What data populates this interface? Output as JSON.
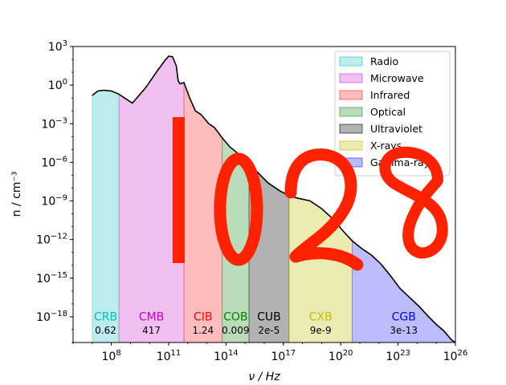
{
  "chart_data": {
    "type": "area",
    "xlabel": "ν / Hz",
    "ylabel": "n / cm⁻³",
    "xscale": "log",
    "yscale": "log",
    "xlim": [
      1000000.0,
      1e+26
    ],
    "ylim": [
      1e-20,
      1000.0
    ],
    "xticks": [
      {
        "value": 100000000.0,
        "base": "10",
        "exp": "8"
      },
      {
        "value": 100000000000.0,
        "base": "10",
        "exp": "11"
      },
      {
        "value": 100000000000000.0,
        "base": "10",
        "exp": "14"
      },
      {
        "value": 1e+17,
        "base": "10",
        "exp": "17"
      },
      {
        "value": 1e+20,
        "base": "10",
        "exp": "20"
      },
      {
        "value": 1e+23,
        "base": "10",
        "exp": "23"
      },
      {
        "value": 1e+26,
        "base": "10",
        "exp": "26"
      }
    ],
    "yticks": [
      {
        "value": 1000.0,
        "base": "10",
        "exp": "3"
      },
      {
        "value": 1.0,
        "base": "10",
        "exp": "0"
      },
      {
        "value": 0.001,
        "base": "10",
        "exp": "−3"
      },
      {
        "value": 1e-06,
        "base": "10",
        "exp": "−6"
      },
      {
        "value": 1e-09,
        "base": "10",
        "exp": "−9"
      },
      {
        "value": 1e-12,
        "base": "10",
        "exp": "−12"
      },
      {
        "value": 1e-15,
        "base": "10",
        "exp": "−15"
      },
      {
        "value": 1e-18,
        "base": "10",
        "exp": "−18"
      }
    ],
    "curve": {
      "log_nu": [
        7.0,
        7.3,
        7.6,
        8.0,
        8.4,
        8.8,
        9.1,
        9.8,
        10.4,
        10.8,
        11.0,
        11.2,
        11.4,
        11.5,
        11.6,
        11.8,
        12.1,
        12.4,
        12.7,
        13.1,
        13.4,
        13.8,
        14.2,
        14.7,
        15.2,
        15.6,
        16.2,
        16.8,
        17.3,
        17.8,
        18.4,
        19.0,
        19.6,
        20.1,
        20.6,
        21.1,
        21.6,
        22.1,
        22.6,
        23.1,
        23.6,
        24.1,
        24.6,
        25.0,
        25.4,
        25.8,
        26.0
      ],
      "log_n": [
        -0.8,
        -0.45,
        -0.4,
        -0.45,
        -0.7,
        -1.1,
        -1.4,
        -0.2,
        1.1,
        1.9,
        2.25,
        2.2,
        1.5,
        0.3,
        0.1,
        0.2,
        -1.0,
        -2.0,
        -2.3,
        -3.0,
        -3.3,
        -4.1,
        -4.8,
        -5.4,
        -6.2,
        -6.7,
        -7.6,
        -8.2,
        -8.6,
        -8.8,
        -9.0,
        -9.6,
        -10.4,
        -11.3,
        -12.1,
        -12.7,
        -13.2,
        -13.9,
        -14.8,
        -15.8,
        -16.5,
        -17.2,
        -18.0,
        -18.6,
        -19.1,
        -19.8,
        -20.1
      ]
    },
    "bands": [
      {
        "name": "Radio",
        "short": "CRB",
        "value": "0.62",
        "range_log_nu": [
          7.0,
          8.4
        ],
        "color": "#22c3c3",
        "label_color": "#00bfbf",
        "alpha": 0.3
      },
      {
        "name": "Microwave",
        "short": "CMB",
        "value": "417",
        "range_log_nu": [
          8.4,
          11.8
        ],
        "color": "#cc33cc",
        "label_color": "#bf00bf",
        "alpha": 0.3
      },
      {
        "name": "Infrared",
        "short": "CIB",
        "value": "1.24",
        "range_log_nu": [
          11.8,
          13.8
        ],
        "color": "#ff2020",
        "label_color": "#ff0000",
        "alpha": 0.3
      },
      {
        "name": "Optical",
        "short": "COB",
        "value": "0.009",
        "range_log_nu": [
          13.8,
          15.2
        ],
        "color": "#1a8c1a",
        "label_color": "#008000",
        "alpha": 0.3
      },
      {
        "name": "Ultraviolet",
        "short": "CUB",
        "value": "2e-5",
        "range_log_nu": [
          15.2,
          17.3
        ],
        "color": "#000000",
        "label_color": "#000000",
        "alpha": 0.3
      },
      {
        "name": "X-rays",
        "short": "CXB",
        "value": "9e-9",
        "range_log_nu": [
          17.3,
          20.6
        ],
        "color": "#bfbf00",
        "label_color": "#bfbf00",
        "alpha": 0.3
      },
      {
        "name": "Gamma-rays",
        "short": "CGB",
        "value": "3e-13",
        "range_log_nu": [
          20.6,
          26.0
        ],
        "color": "#2020ff",
        "label_color": "#0000ff",
        "alpha": 0.3
      }
    ],
    "band_label_log_n": -18.3,
    "band_value_log_n": -19.3,
    "legend": {
      "placement": "upper right"
    },
    "grid": false,
    "overlay_text": {
      "value": "1028",
      "color": "#ff2200"
    }
  }
}
